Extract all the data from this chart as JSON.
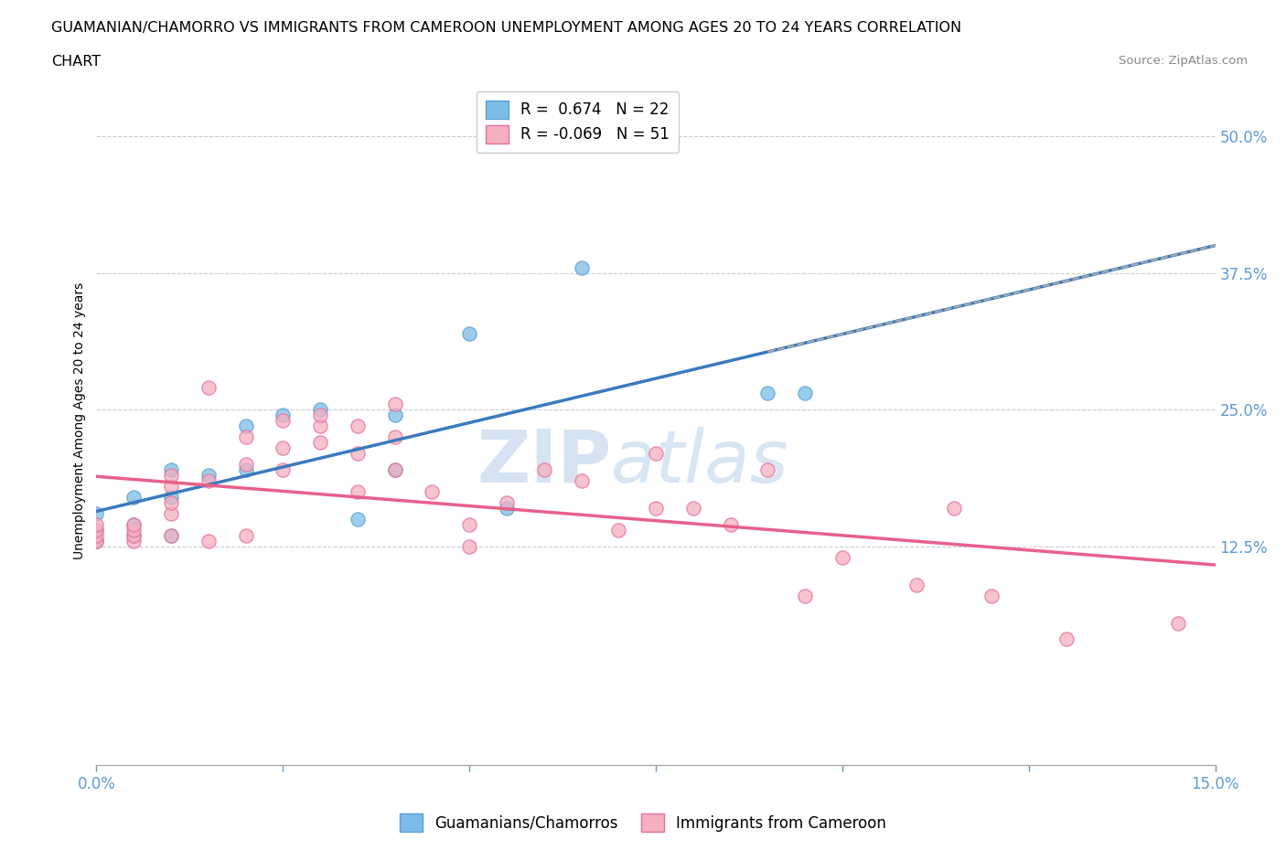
{
  "title_line1": "GUAMANIAN/CHAMORRO VS IMMIGRANTS FROM CAMEROON UNEMPLOYMENT AMONG AGES 20 TO 24 YEARS CORRELATION",
  "title_line2": "CHART",
  "source": "Source: ZipAtlas.com",
  "ylabel": "Unemployment Among Ages 20 to 24 years",
  "xlim": [
    0.0,
    0.15
  ],
  "ylim": [
    -0.075,
    0.555
  ],
  "yticks": [
    0.125,
    0.25,
    0.375,
    0.5
  ],
  "ytick_labels": [
    "12.5%",
    "25.0%",
    "37.5%",
    "50.0%"
  ],
  "xticks": [
    0.0,
    0.025,
    0.05,
    0.075,
    0.1,
    0.125,
    0.15
  ],
  "xtick_labels": [
    "0.0%",
    "",
    "",
    "",
    "",
    "",
    "15.0%"
  ],
  "blue_color": "#7bbde8",
  "blue_edge_color": "#5a9fd4",
  "pink_color": "#f4afc0",
  "pink_edge_color": "#e87098",
  "blue_line_color": "#3a7abf",
  "pink_line_color": "#e8608a",
  "r_blue": 0.674,
  "n_blue": 22,
  "r_pink": -0.069,
  "n_pink": 51,
  "watermark_zip": "ZIP",
  "watermark_atlas": "atlas",
  "legend_label_blue": "Guamanians/Chamorros",
  "legend_label_pink": "Immigrants from Cameroon",
  "blue_scatter_x": [
    0.0,
    0.0,
    0.0,
    0.005,
    0.005,
    0.005,
    0.01,
    0.01,
    0.01,
    0.015,
    0.02,
    0.02,
    0.025,
    0.03,
    0.035,
    0.04,
    0.04,
    0.05,
    0.055,
    0.065,
    0.09,
    0.095
  ],
  "blue_scatter_y": [
    0.13,
    0.14,
    0.155,
    0.135,
    0.145,
    0.17,
    0.135,
    0.17,
    0.195,
    0.19,
    0.195,
    0.235,
    0.245,
    0.25,
    0.15,
    0.195,
    0.245,
    0.32,
    0.16,
    0.38,
    0.265,
    0.265
  ],
  "pink_scatter_x": [
    0.0,
    0.0,
    0.0,
    0.0,
    0.0,
    0.005,
    0.005,
    0.005,
    0.005,
    0.01,
    0.01,
    0.01,
    0.01,
    0.01,
    0.015,
    0.015,
    0.015,
    0.02,
    0.02,
    0.02,
    0.025,
    0.025,
    0.025,
    0.03,
    0.03,
    0.03,
    0.035,
    0.035,
    0.035,
    0.04,
    0.04,
    0.04,
    0.045,
    0.05,
    0.05,
    0.055,
    0.06,
    0.065,
    0.07,
    0.075,
    0.075,
    0.08,
    0.085,
    0.09,
    0.095,
    0.1,
    0.11,
    0.115,
    0.12,
    0.13,
    0.145
  ],
  "pink_scatter_y": [
    0.13,
    0.13,
    0.135,
    0.14,
    0.145,
    0.13,
    0.135,
    0.14,
    0.145,
    0.135,
    0.155,
    0.165,
    0.18,
    0.19,
    0.13,
    0.185,
    0.27,
    0.135,
    0.2,
    0.225,
    0.195,
    0.215,
    0.24,
    0.22,
    0.235,
    0.245,
    0.175,
    0.21,
    0.235,
    0.195,
    0.225,
    0.255,
    0.175,
    0.125,
    0.145,
    0.165,
    0.195,
    0.185,
    0.14,
    0.16,
    0.21,
    0.16,
    0.145,
    0.195,
    0.08,
    0.115,
    0.09,
    0.16,
    0.08,
    0.04,
    0.055
  ],
  "background_color": "#ffffff",
  "grid_color": "#cccccc",
  "tick_color": "#5b9bd5"
}
